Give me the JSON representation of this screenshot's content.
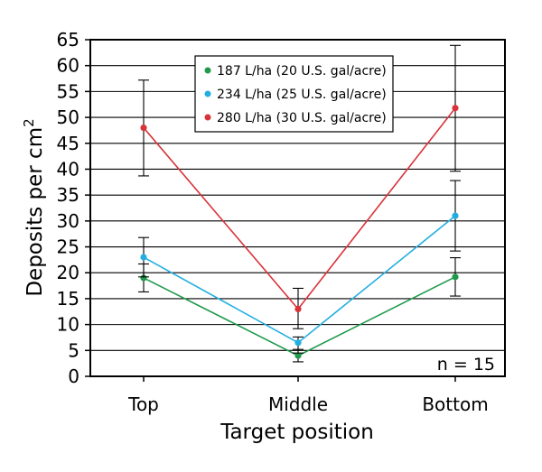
{
  "chart_data": {
    "type": "line",
    "xlabel": "Target position",
    "ylabel": "Deposits per cm",
    "ylabel_sup": "2",
    "ylim": [
      0,
      65
    ],
    "yticks": [
      0,
      5,
      10,
      15,
      20,
      25,
      30,
      35,
      40,
      45,
      50,
      55,
      60,
      65
    ],
    "grid": "horizontal",
    "legend_position": "top-center",
    "categories": [
      "Top",
      "Middle",
      "Bottom"
    ],
    "annotation": "n = 15",
    "series": [
      {
        "name": "187 L/ha (20 U.S. gal/acre)",
        "color": "#1f9a4c",
        "values": [
          19,
          4,
          19.2
        ],
        "error_low": [
          16.3,
          2.8,
          15.5
        ],
        "error_high": [
          21.7,
          5.2,
          22.9
        ]
      },
      {
        "name": "234 L/ha (25 U.S. gal/acre)",
        "color": "#22aee0",
        "values": [
          23,
          6.5,
          31
        ],
        "error_low": [
          19.2,
          4.5,
          24.2
        ],
        "error_high": [
          26.8,
          7.6,
          37.8
        ]
      },
      {
        "name": "280 L/ha (30 U.S. gal/acre)",
        "color": "#d9333a",
        "values": [
          48,
          13,
          51.8
        ],
        "error_low": [
          38.7,
          9.2,
          39.6
        ],
        "error_high": [
          57.2,
          17,
          63.9
        ]
      }
    ]
  }
}
